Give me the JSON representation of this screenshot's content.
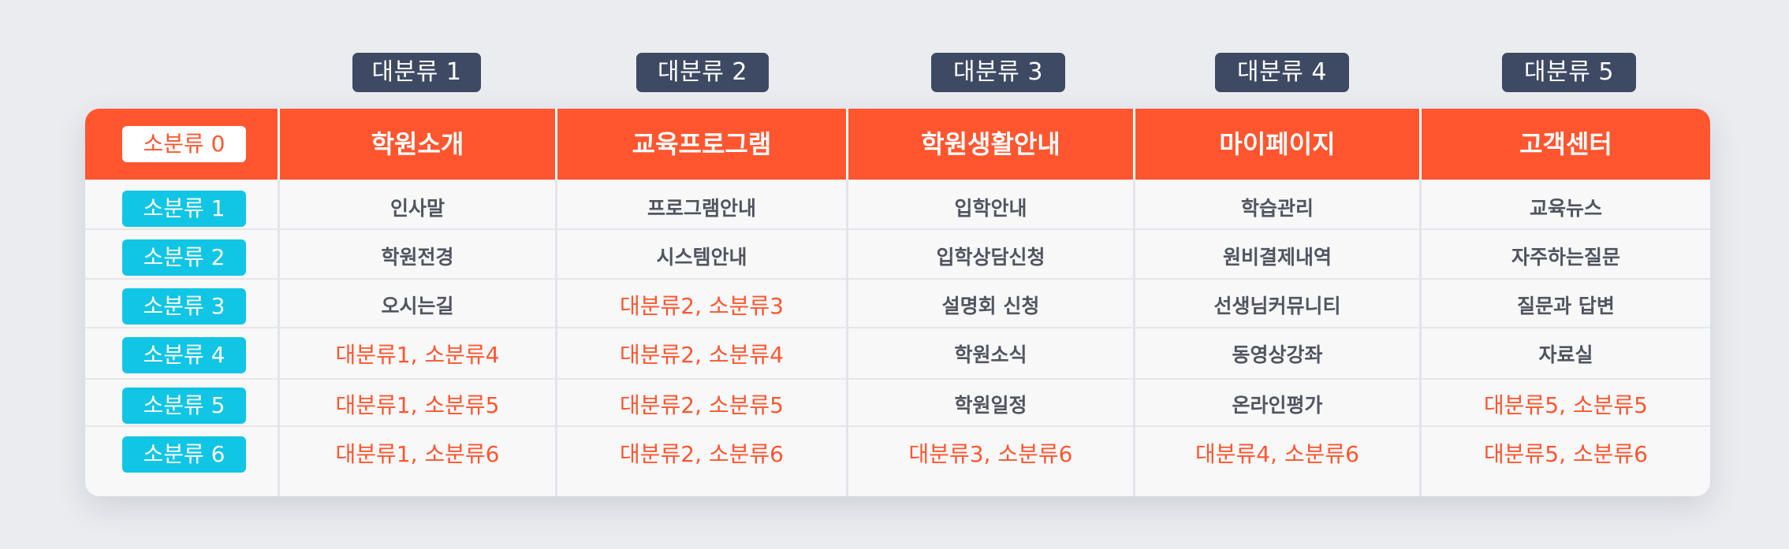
{
  "colors": {
    "accent": "#ff5630",
    "tag_bg": "#3e4a63",
    "pill_cyan": "#11c5e4",
    "background": "#eaecf0"
  },
  "major_tags": [
    "대분류 1",
    "대분류 2",
    "대분류 3",
    "대분류 4",
    "대분류 5"
  ],
  "header": {
    "row_label": "소분류 0",
    "columns": [
      "학원소개",
      "교육프로그램",
      "학원생활안내",
      "마이페이지",
      "고객센터"
    ]
  },
  "rows": [
    {
      "label": "소분류 1",
      "cells": [
        {
          "text": "인사말",
          "accent": false
        },
        {
          "text": "프로그램안내",
          "accent": false
        },
        {
          "text": "입학안내",
          "accent": false
        },
        {
          "text": "학습관리",
          "accent": false
        },
        {
          "text": "교육뉴스",
          "accent": false
        }
      ]
    },
    {
      "label": "소분류 2",
      "cells": [
        {
          "text": "학원전경",
          "accent": false
        },
        {
          "text": "시스템안내",
          "accent": false
        },
        {
          "text": "입학상담신청",
          "accent": false
        },
        {
          "text": "원비결제내역",
          "accent": false
        },
        {
          "text": "자주하는질문",
          "accent": false
        }
      ]
    },
    {
      "label": "소분류 3",
      "cells": [
        {
          "text": "오시는길",
          "accent": false
        },
        {
          "text": "대분류2, 소분류3",
          "accent": true
        },
        {
          "text": "설명회 신청",
          "accent": false
        },
        {
          "text": "선생님커뮤니티",
          "accent": false
        },
        {
          "text": "질문과 답변",
          "accent": false
        }
      ]
    },
    {
      "label": "소분류 4",
      "cells": [
        {
          "text": "대분류1, 소분류4",
          "accent": true
        },
        {
          "text": "대분류2, 소분류4",
          "accent": true
        },
        {
          "text": "학원소식",
          "accent": false
        },
        {
          "text": "동영상강좌",
          "accent": false
        },
        {
          "text": "자료실",
          "accent": false
        }
      ]
    },
    {
      "label": "소분류 5",
      "cells": [
        {
          "text": "대분류1, 소분류5",
          "accent": true
        },
        {
          "text": "대분류2, 소분류5",
          "accent": true
        },
        {
          "text": "학원일정",
          "accent": false
        },
        {
          "text": "온라인평가",
          "accent": false
        },
        {
          "text": "대분류5, 소분류5",
          "accent": true
        }
      ]
    },
    {
      "label": "소분류 6",
      "cells": [
        {
          "text": "대분류1, 소분류6",
          "accent": true
        },
        {
          "text": "대분류2, 소분류6",
          "accent": true
        },
        {
          "text": "대분류3, 소분류6",
          "accent": true
        },
        {
          "text": "대분류4, 소분류6",
          "accent": true
        },
        {
          "text": "대분류5, 소분류6",
          "accent": true
        }
      ]
    }
  ]
}
